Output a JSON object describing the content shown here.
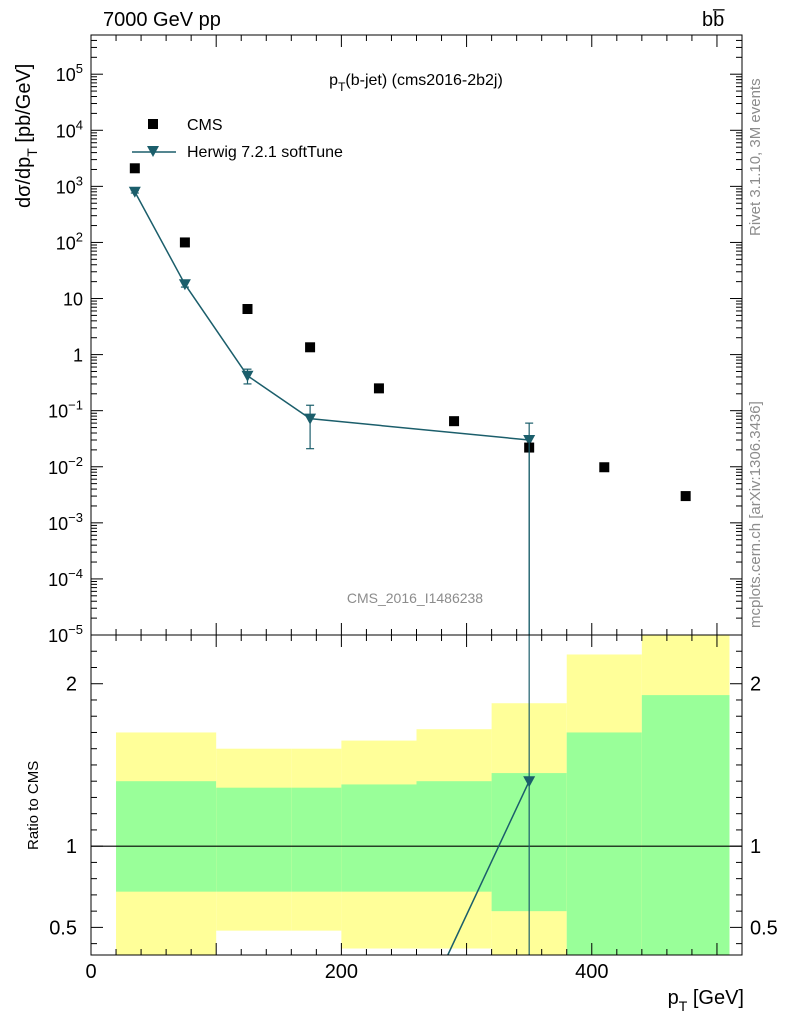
{
  "header": {
    "left": "7000 GeV pp",
    "right": "bb̅"
  },
  "side_labels": {
    "version": "Rivet 3.1.10,  3M events",
    "source": "mcplots.cern.ch [arXiv:1306.3436]"
  },
  "chart_data": [
    {
      "type": "scatter",
      "title_main": "p",
      "title_sub": "T",
      "title_rest": "(b-jet) (cms2016-2b2j)",
      "watermark": "CMS_2016_I1486238",
      "ylabel": "dσ/dp",
      "ylabel_sub": "T",
      "ylabel_rest": " [pb/GeV]",
      "yscale": "log",
      "ylim": [
        1e-05,
        500000
      ],
      "xlim": [
        0,
        520
      ],
      "y_ticks": [
        {
          "v": 100000,
          "base": "10",
          "exp": "5"
        },
        {
          "v": 10000,
          "base": "10",
          "exp": "4"
        },
        {
          "v": 1000,
          "base": "10",
          "exp": "3"
        },
        {
          "v": 100,
          "base": "10",
          "exp": "2"
        },
        {
          "v": 10,
          "base": "10",
          "exp": ""
        },
        {
          "v": 1,
          "base": "1",
          "exp": ""
        },
        {
          "v": 0.1,
          "base": "10",
          "exp": "−1"
        },
        {
          "v": 0.01,
          "base": "10",
          "exp": "−2"
        },
        {
          "v": 0.001,
          "base": "10",
          "exp": "−3"
        },
        {
          "v": 0.0001,
          "base": "10",
          "exp": "−4"
        },
        {
          "v": 1e-05,
          "base": "10",
          "exp": "−5"
        }
      ],
      "legend": {
        "placement": "top-left",
        "entries": [
          "CMS",
          "Herwig 7.2.1 softTune"
        ]
      },
      "series": [
        {
          "name": "CMS",
          "marker": "square",
          "color": "#000000",
          "x": [
            35,
            75,
            125,
            175,
            230,
            290,
            350,
            410,
            475
          ],
          "y": [
            2100,
            100,
            6.5,
            1.35,
            0.25,
            0.065,
            0.022,
            0.0098,
            0.003
          ]
        },
        {
          "name": "Herwig 7.2.1 softTune",
          "marker": "triangle-down",
          "color": "#1b5e6b",
          "x": [
            35,
            75,
            125,
            175,
            350
          ],
          "y": [
            800,
            18,
            0.42,
            0.072,
            0.03
          ],
          "y_err_low": [
            760,
            16,
            0.3,
            0.021,
            1e-08
          ],
          "y_err_high": [
            840,
            20,
            0.55,
            0.125,
            0.06
          ]
        }
      ]
    },
    {
      "type": "area",
      "ylabel": "Ratio to CMS",
      "xlabel": "p",
      "xlabel_sub": "T",
      "xlabel_rest": " [GeV]",
      "xlim": [
        0,
        520
      ],
      "ylim": [
        0.33,
        2.3
      ],
      "x_ticks": [
        0,
        200,
        400
      ],
      "y_ticks": [
        0.5,
        1,
        2
      ],
      "bins": [
        20,
        100,
        160,
        200,
        260,
        320,
        380,
        440,
        510
      ],
      "band_inner": {
        "color": "#99ff99",
        "low": [
          0.72,
          0.72,
          0.72,
          0.72,
          0.72,
          0.6,
          0.33,
          0.33
        ],
        "high": [
          1.4,
          1.36,
          1.36,
          1.38,
          1.4,
          1.45,
          1.7,
          1.93
        ]
      },
      "band_outer": {
        "color": "#ffff99",
        "low": [
          0.33,
          0.48,
          0.48,
          0.37,
          0.37,
          0.33,
          0.33,
          0.33
        ],
        "high": [
          1.7,
          1.6,
          1.6,
          1.65,
          1.72,
          1.88,
          2.18,
          2.3
        ]
      },
      "ratio_series": {
        "name": "Herwig 7.2.1 softTune",
        "color": "#1b5e6b",
        "x": [
          285,
          350
        ],
        "y": [
          0.33,
          1.4
        ]
      }
    }
  ]
}
